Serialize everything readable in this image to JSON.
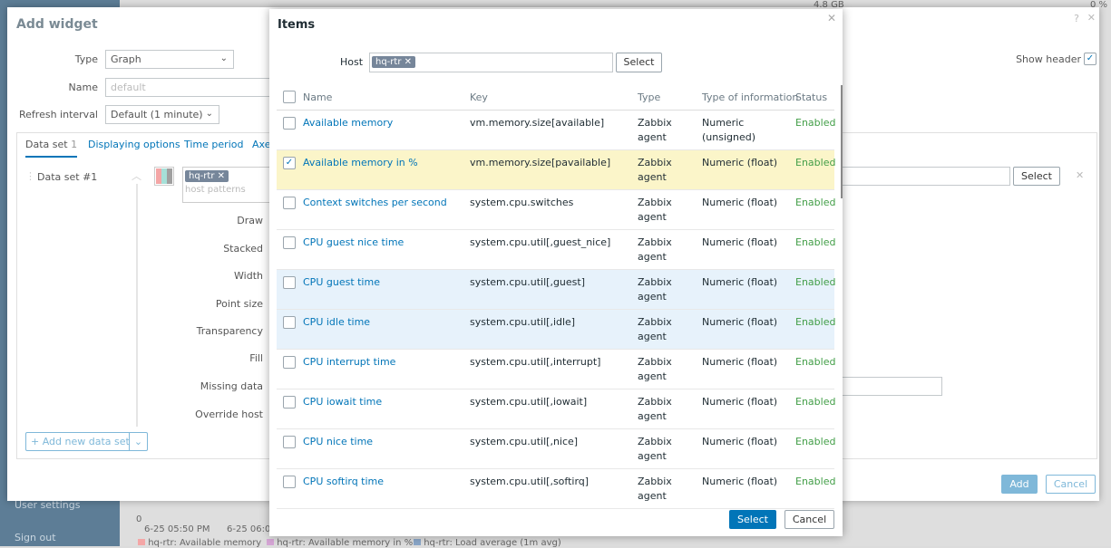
{
  "background": {
    "sidebar": {
      "items": [
        "User settings",
        "Sign out"
      ]
    },
    "widget_values": [
      "4.8 GB",
      "0 %"
    ],
    "chart": {
      "y_tick": "0",
      "x_ticks": [
        "6-25 05:50 PM",
        "6-25 06:0"
      ],
      "legend": [
        {
          "label": "hq-rtr: Available memory",
          "color": "#f4a6a6"
        },
        {
          "label": "hq-rtr: Available memory in %",
          "color": "#d6a6d6"
        },
        {
          "label": "hq-rtr: Load average (1m avg)",
          "color": "#8aa6c8"
        }
      ]
    }
  },
  "add_widget": {
    "title": "Add widget",
    "help": "?",
    "close": "✕",
    "type_label": "Type",
    "type_value": "Graph",
    "name_label": "Name",
    "name_placeholder": "default",
    "refresh_label": "Refresh interval",
    "refresh_value": "Default (1 minute)",
    "show_header_label": "Show header",
    "show_header_checked": true,
    "tabs": [
      {
        "label": "Data set",
        "count": "1"
      },
      {
        "label": "Displaying options"
      },
      {
        "label": "Time period"
      },
      {
        "label": "Axe"
      }
    ],
    "dataset": {
      "title": "Data set #1",
      "host_tag": "hq-rtr",
      "host_placeholder": "host patterns",
      "colors": [
        "#f4a6a6",
        "#a6e0d8",
        "#a0a0a0"
      ],
      "fields": [
        "Draw",
        "Stacked",
        "Width",
        "Point size",
        "Transparency",
        "Fill",
        "Missing data",
        "Override host"
      ],
      "item_select": "Select",
      "remove": "✕"
    },
    "add_dataset": "Add new data set",
    "add_button": "Add",
    "cancel_button": "Cancel"
  },
  "items_dialog": {
    "title": "Items",
    "close": "✕",
    "host_label": "Host",
    "host_tag": "hq-rtr",
    "host_select": "Select",
    "columns": [
      "Name",
      "Key",
      "Type",
      "Type of information",
      "Status"
    ],
    "rows": [
      {
        "name": "Available memory",
        "key": "vm.memory.size[available]",
        "type": "Zabbix agent",
        "info": "Numeric (unsigned)",
        "status": "Enabled",
        "checked": false
      },
      {
        "name": "Available memory in %",
        "key": "vm.memory.size[pavailable]",
        "type": "Zabbix agent",
        "info": "Numeric (float)",
        "status": "Enabled",
        "checked": true
      },
      {
        "name": "Context switches per second",
        "key": "system.cpu.switches",
        "type": "Zabbix agent",
        "info": "Numeric (float)",
        "status": "Enabled",
        "checked": false
      },
      {
        "name": "CPU guest nice time",
        "key": "system.cpu.util[,guest_nice]",
        "type": "Zabbix agent",
        "info": "Numeric (float)",
        "status": "Enabled",
        "checked": false
      },
      {
        "name": "CPU guest time",
        "key": "system.cpu.util[,guest]",
        "type": "Zabbix agent",
        "info": "Numeric (float)",
        "status": "Enabled",
        "checked": false
      },
      {
        "name": "CPU idle time",
        "key": "system.cpu.util[,idle]",
        "type": "Zabbix agent",
        "info": "Numeric (float)",
        "status": "Enabled",
        "checked": false
      },
      {
        "name": "CPU interrupt time",
        "key": "system.cpu.util[,interrupt]",
        "type": "Zabbix agent",
        "info": "Numeric (float)",
        "status": "Enabled",
        "checked": false
      },
      {
        "name": "CPU iowait time",
        "key": "system.cpu.util[,iowait]",
        "type": "Zabbix agent",
        "info": "Numeric (float)",
        "status": "Enabled",
        "checked": false
      },
      {
        "name": "CPU nice time",
        "key": "system.cpu.util[,nice]",
        "type": "Zabbix agent",
        "info": "Numeric (float)",
        "status": "Enabled",
        "checked": false
      },
      {
        "name": "CPU softirq time",
        "key": "system.cpu.util[,softirq]",
        "type": "Zabbix agent",
        "info": "Numeric (float)",
        "status": "Enabled",
        "checked": false
      }
    ],
    "select_button": "Select",
    "cancel_button": "Cancel"
  }
}
